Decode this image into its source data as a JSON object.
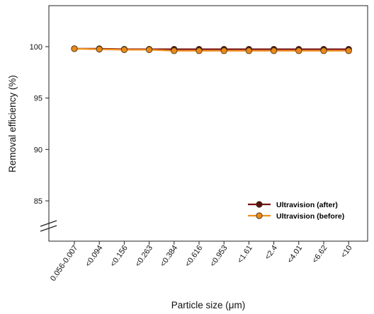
{
  "chart_data": {
    "type": "line",
    "title": "",
    "xlabel": "Particle size (μm)",
    "ylabel": "Removal efficiency (%)",
    "categories": [
      "0.056-0.007",
      "<0.094",
      "<0.156",
      "<0.263",
      "<0.384",
      "<0.616",
      "<0.953",
      "<1.61",
      "<2.4",
      "<4.01",
      "<6.62",
      "<10"
    ],
    "yticks": [
      85,
      90,
      95,
      100
    ],
    "ylim": [
      82,
      104
    ],
    "axis_break": true,
    "grid": false,
    "legend_position": "bottom-right",
    "series": [
      {
        "name": "Ultravision (after)",
        "color": "#7a0f0f",
        "marker_color": "#5a1010",
        "values": [
          99.8,
          99.8,
          99.75,
          99.75,
          99.75,
          99.75,
          99.75,
          99.75,
          99.75,
          99.75,
          99.75,
          99.75
        ]
      },
      {
        "name": "Ultravision (before)",
        "color": "#f09020",
        "marker_color": "#e8891a",
        "values": [
          99.8,
          99.75,
          99.7,
          99.7,
          99.6,
          99.6,
          99.6,
          99.6,
          99.6,
          99.6,
          99.6,
          99.6
        ]
      }
    ]
  }
}
